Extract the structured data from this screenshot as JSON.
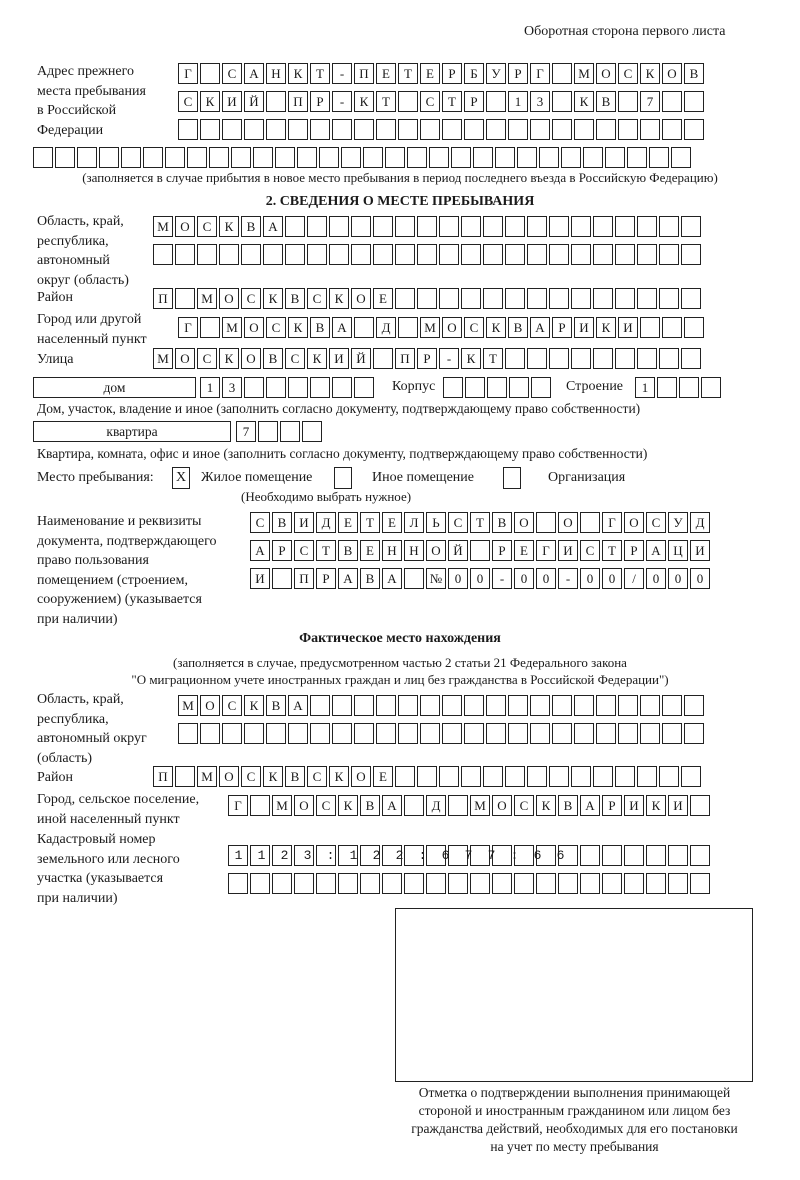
{
  "header": {
    "page_side": "Оборотная сторона первого листа"
  },
  "previous_address": {
    "label": "Адрес прежнего\nместа пребывания\nв Российской\nФедерации",
    "rows": [
      "Г САНКТ-ПЕТЕРБУРГ МОСКОВ",
      "СКИЙ ПР-КТ СТР 13 КВ 7",
      "",
      ""
    ],
    "note": "(заполняется в случае прибытия в новое место пребывания в период последнего въезда в Российскую Федерацию)"
  },
  "section2": {
    "title": "2. СВЕДЕНИЯ О МЕСТЕ ПРЕБЫВАНИЯ",
    "region_label": "Область, край,\nреспублика,\nавтономный\nокруг (область)",
    "region_rows": [
      "МОСКВА",
      ""
    ],
    "district_label": "Район",
    "district": "П МОСКВСКОЕ",
    "city_label": "Город или другой\nнаселенный пункт",
    "city": "Г МОСКВА Д МОСКВАРИКИ",
    "street_label": "Улица",
    "street": "МОСКОВСКИЙ ПР-КТ",
    "house_type": "дом",
    "house": "13",
    "korpus_label": "Корпус",
    "korpus": "",
    "building_label": "Строение",
    "building": "1",
    "house_caption": "Дом, участок, владение и иное (заполнить согласно документу, подтверждающему право собственности)",
    "apartment_type": "квартира",
    "apartment": "7",
    "apartment_caption": "Квартира, комната, офис и иное (заполнить согласно документу, подтверждающему право собственности)",
    "place_label": "Место пребывания:",
    "place_options": [
      {
        "label": "Жилое помещение",
        "mark": "Х",
        "checked": true
      },
      {
        "label": "Иное помещение",
        "mark": "",
        "checked": false
      },
      {
        "label": "Организация",
        "mark": "",
        "checked": false
      }
    ],
    "place_hint": "(Необходимо выбрать нужное)",
    "document_label": "Наименование и реквизиты\nдокумента, подтверждающего\nправо пользования\nпомещением (строением,\nсооружением) (указывается\nпри наличии)",
    "document_rows": [
      "СВИДЕТЕЛЬСТВО О ГОСУД",
      "АРСТВЕННОЙ РЕГИСТРАЦИ",
      "И ПРАВА №00-00-00/000"
    ]
  },
  "actual_location": {
    "title": "Фактическое место нахождения",
    "note_line1": "(заполняется в случае, предусмотренном частью 2 статьи 21 Федерального закона",
    "note_line2": "\"О миграционном учете иностранных граждан и лиц без гражданства в Российской Федерации\")",
    "region_label": "Область, край,\nреспублика,\nавтономный округ\n(область)",
    "region_rows": [
      "МОСКВА",
      ""
    ],
    "district_label": "Район",
    "district": "П МОСКВСКОЕ",
    "city_label": "Город, сельское поселение,\nиной населенный пункт",
    "city": "Г МОСКВА Д МОСКВАРИКИ",
    "cadastral_label": "Кадастровый номер\nземельного или лесного\nучастка (указывается\nпри наличии)",
    "cadastral_rows": [
      "1123:122:677:66",
      ""
    ]
  },
  "confirmation": {
    "caption": "Отметка о подтверждении выполнения принимающей\nстороной и иностранным гражданином или лицом без\nгражданства действий, необходимых для его постановки\nна учет по месту пребывания"
  }
}
